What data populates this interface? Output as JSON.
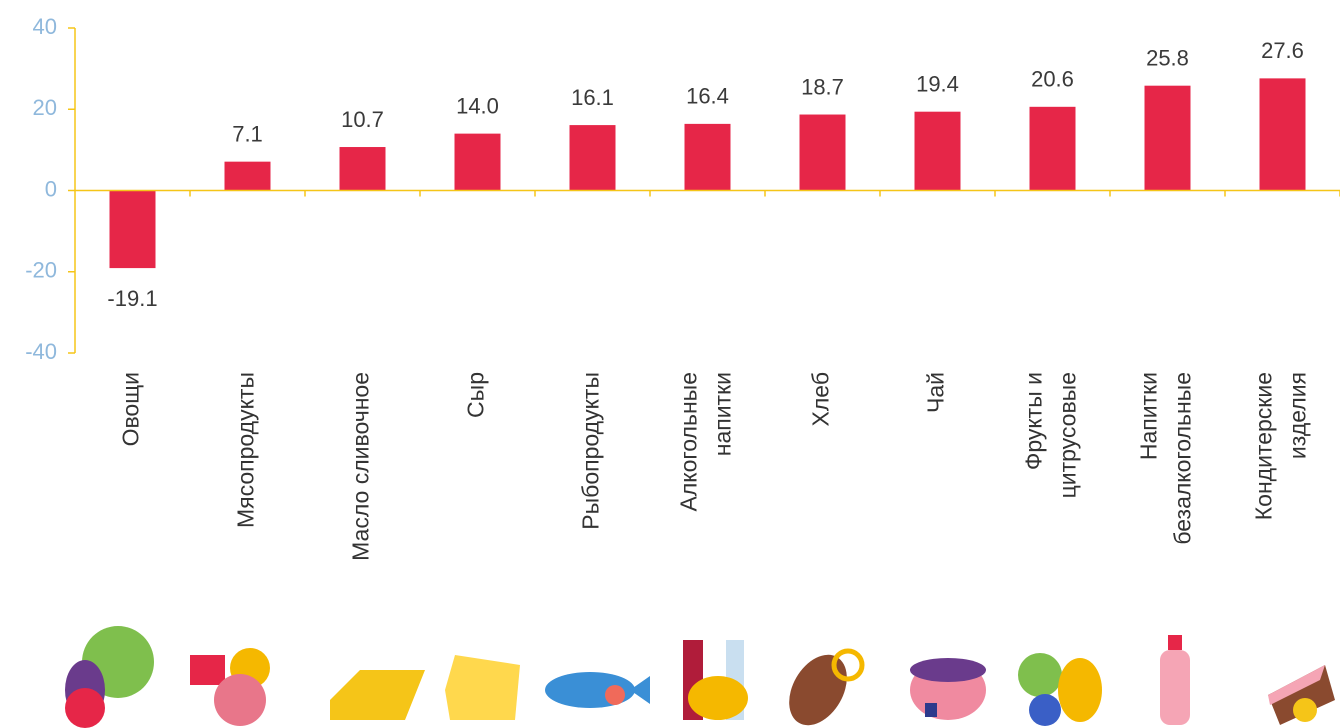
{
  "chart_data": {
    "type": "bar",
    "categories": [
      "Овощи",
      "Мясопродукты",
      "Масло сливочное",
      "Сыр",
      "Рыбопродукты",
      "Алкогольные\nнапитки",
      "Хлеб",
      "Чай",
      "Фрукты и\nцитрусовые",
      "Напитки\nбезалкогольные",
      "Кондитерские\nизделия"
    ],
    "values": [
      -19.1,
      7.1,
      10.7,
      14.0,
      16.1,
      16.4,
      18.7,
      19.4,
      20.6,
      25.8,
      27.6
    ],
    "value_labels": [
      "-19.1",
      "7.1",
      "10.7",
      "14.0",
      "16.1",
      "16.4",
      "18.7",
      "19.4",
      "20.6",
      "25.8",
      "27.6"
    ],
    "color": "#e62648",
    "ylim": [
      -40,
      40
    ],
    "yticks": [
      -40,
      -20,
      0,
      20,
      40
    ]
  }
}
